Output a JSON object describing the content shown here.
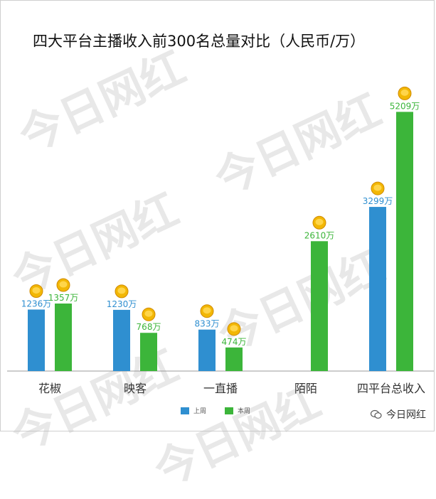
{
  "chart_data": {
    "type": "bar",
    "title": "四大平台主播收入前300名总量对比（人民币/万）",
    "categories": [
      "花椒",
      "映客",
      "一直播",
      "陌陌",
      "四平台总收入"
    ],
    "series": [
      {
        "name": "上周",
        "values": [
          1236,
          1230,
          833,
          null,
          3299
        ],
        "labels": [
          "1236万",
          "1230万",
          "833万",
          "",
          "3299万"
        ]
      },
      {
        "name": "本周",
        "values": [
          1357,
          768,
          474,
          2610,
          5209
        ],
        "labels": [
          "1357万",
          "768万",
          "474万",
          "2610万",
          "5209万"
        ]
      }
    ],
    "ylim": [
      0,
      5600
    ],
    "grid": false,
    "legend": "bottom-center"
  },
  "colors": {
    "last_week": "#2f8fd0",
    "this_week": "#3cb53a",
    "axis": "#999999"
  },
  "watermark": "今日网红",
  "brand": {
    "label": "今日网红",
    "icon": "wechat-icon"
  }
}
